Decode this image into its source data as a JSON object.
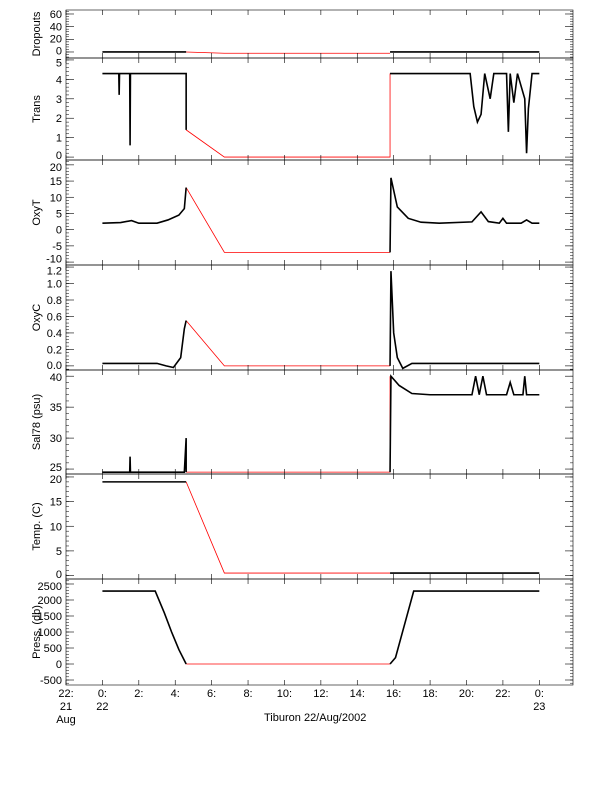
{
  "chart_data": {
    "type": "line",
    "title": "",
    "xlabel": "Tiburon 22/Aug/2002",
    "x_units": "hours since 00:00 22 Aug 2002",
    "xlim": [
      -2,
      25.85
    ],
    "x_ticks": [
      {
        "value": -2,
        "label": [
          "22:",
          "21",
          "Aug"
        ]
      },
      {
        "value": 0,
        "label": [
          "0:",
          "22"
        ]
      },
      {
        "value": 2,
        "label": [
          "2:"
        ]
      },
      {
        "value": 4,
        "label": [
          "4:"
        ]
      },
      {
        "value": 6,
        "label": [
          "6:"
        ]
      },
      {
        "value": 8,
        "label": [
          "8:"
        ]
      },
      {
        "value": 10,
        "label": [
          "10:"
        ]
      },
      {
        "value": 12,
        "label": [
          "12:"
        ]
      },
      {
        "value": 14,
        "label": [
          "14:"
        ]
      },
      {
        "value": 16,
        "label": [
          "16:"
        ]
      },
      {
        "value": 18,
        "label": [
          "18:"
        ]
      },
      {
        "value": 20,
        "label": [
          "20:"
        ]
      },
      {
        "value": 22,
        "label": [
          "22:"
        ]
      },
      {
        "value": 24,
        "label": [
          "0:",
          "23"
        ]
      }
    ],
    "colors": {
      "measured": "#000000",
      "interpolated": "#ff0000"
    },
    "panels": [
      {
        "ylabel": "Dropouts",
        "ylim": [
          -9.5,
          66.3
        ],
        "ticks": [
          0,
          20,
          40,
          60
        ],
        "tick_labels": [
          "0",
          "20",
          "40",
          "60"
        ],
        "black": [
          [
            [
              0,
              0
            ],
            [
              4.6,
              0
            ]
          ],
          [
            [
              15.8,
              0
            ],
            [
              24,
              0
            ]
          ]
        ],
        "red": [
          [
            [
              4.6,
              0
            ],
            [
              6.7,
              -2
            ],
            [
              15.8,
              -2
            ]
          ]
        ]
      },
      {
        "ylabel": "Trans",
        "ylim": [
          -0.15,
          5.1
        ],
        "ticks": [
          0,
          1,
          2,
          3,
          4,
          5
        ],
        "tick_labels": [
          "0",
          "1",
          "2",
          "3",
          "4",
          "5"
        ],
        "black": [
          [
            [
              0,
              4.3
            ],
            [
              0.9,
              4.3
            ],
            [
              0.92,
              3.2
            ],
            [
              0.94,
              4.3
            ],
            [
              1.5,
              4.3
            ],
            [
              1.52,
              0.6
            ],
            [
              1.54,
              4.3
            ],
            [
              4.6,
              4.3
            ],
            [
              4.6,
              1.4
            ]
          ],
          [
            [
              15.8,
              4.3
            ],
            [
              20.2,
              4.3
            ],
            [
              20.4,
              2.6
            ],
            [
              20.6,
              1.8
            ],
            [
              20.8,
              2.2
            ],
            [
              21.0,
              4.3
            ],
            [
              21.3,
              3.0
            ],
            [
              21.5,
              4.3
            ],
            [
              22.2,
              4.3
            ],
            [
              22.3,
              1.3
            ],
            [
              22.4,
              4.3
            ],
            [
              22.6,
              2.8
            ],
            [
              22.8,
              4.3
            ],
            [
              23.2,
              3.0
            ],
            [
              23.3,
              0.2
            ],
            [
              23.4,
              2.5
            ],
            [
              23.6,
              4.3
            ],
            [
              24,
              4.3
            ]
          ]
        ],
        "red": [
          [
            [
              4.6,
              1.4
            ],
            [
              6.7,
              0
            ],
            [
              15.8,
              0
            ],
            [
              15.8,
              4.3
            ]
          ]
        ]
      },
      {
        "ylabel": "OxyT",
        "ylim": [
          -10.9,
          21.5
        ],
        "ticks": [
          -10,
          -5,
          0,
          5,
          10,
          15,
          20
        ],
        "tick_labels": [
          "-10",
          "-5",
          "0",
          "5",
          "10",
          "15",
          "20"
        ],
        "black": [
          [
            [
              0,
              2
            ],
            [
              1,
              2.2
            ],
            [
              1.6,
              2.8
            ],
            [
              2,
              2
            ],
            [
              3,
              2
            ],
            [
              3.6,
              3
            ],
            [
              4.2,
              4.5
            ],
            [
              4.5,
              6.5
            ],
            [
              4.6,
              13
            ]
          ],
          [
            [
              15.8,
              -7
            ],
            [
              15.85,
              16
            ],
            [
              16.2,
              7
            ],
            [
              16.8,
              3.5
            ],
            [
              17.5,
              2.3
            ],
            [
              18.5,
              2
            ],
            [
              20.3,
              2.4
            ],
            [
              20.8,
              5.5
            ],
            [
              21.2,
              2.5
            ],
            [
              21.8,
              2
            ],
            [
              22,
              3.5
            ],
            [
              22.2,
              2
            ],
            [
              23,
              2
            ],
            [
              23.3,
              3
            ],
            [
              23.6,
              2
            ],
            [
              24,
              2
            ]
          ]
        ],
        "red": [
          [
            [
              4.6,
              13
            ],
            [
              6.7,
              -7
            ],
            [
              15.8,
              -7
            ]
          ]
        ]
      },
      {
        "ylabel": "OxyC",
        "ylim": [
          -0.05,
          1.225
        ],
        "ticks": [
          0,
          0.2,
          0.4,
          0.6,
          0.8,
          1.0,
          1.2
        ],
        "tick_labels": [
          "0.0",
          "0.2",
          "0.4",
          "0.6",
          "0.8",
          "1.0",
          "1.2"
        ],
        "black": [
          [
            [
              0,
              0.03
            ],
            [
              3,
              0.03
            ],
            [
              3.5,
              0
            ],
            [
              3.9,
              -0.02
            ],
            [
              4.3,
              0.1
            ],
            [
              4.5,
              0.45
            ],
            [
              4.6,
              0.55
            ]
          ],
          [
            [
              15.8,
              0
            ],
            [
              15.85,
              1.15
            ],
            [
              16.0,
              0.4
            ],
            [
              16.2,
              0.1
            ],
            [
              16.5,
              -0.03
            ],
            [
              17,
              0.03
            ],
            [
              24,
              0.03
            ]
          ]
        ],
        "red": [
          [
            [
              4.6,
              0.55
            ],
            [
              6.7,
              0
            ],
            [
              15.8,
              0
            ]
          ]
        ]
      },
      {
        "ylabel": "Sal78 (psu)",
        "ylim": [
          24.2,
          41
        ],
        "ticks": [
          25,
          30,
          35,
          40
        ],
        "tick_labels": [
          "25",
          "30",
          "35",
          "40"
        ],
        "black": [
          [
            [
              0,
              24.5
            ],
            [
              1.5,
              24.5
            ],
            [
              1.52,
              27
            ],
            [
              1.54,
              24.5
            ],
            [
              4.5,
              24.5
            ],
            [
              4.6,
              30
            ],
            [
              4.6,
              24.5
            ]
          ],
          [
            [
              15.8,
              24.5
            ],
            [
              15.85,
              40
            ],
            [
              16.3,
              38.5
            ],
            [
              17,
              37.2
            ],
            [
              18,
              37
            ],
            [
              20.3,
              37
            ],
            [
              20.5,
              40
            ],
            [
              20.7,
              37
            ],
            [
              20.9,
              40
            ],
            [
              21.1,
              37
            ],
            [
              22.2,
              37
            ],
            [
              22.4,
              39
            ],
            [
              22.6,
              37
            ],
            [
              23.1,
              37
            ],
            [
              23.2,
              40
            ],
            [
              23.3,
              37
            ],
            [
              24,
              37
            ]
          ]
        ],
        "red": [
          [
            [
              4.6,
              24.5
            ],
            [
              15.8,
              24.5
            ],
            [
              15.8,
              40
            ]
          ]
        ]
      },
      {
        "ylabel": "Temp. (C)",
        "ylim": [
          -0.7,
          20.6
        ],
        "ticks": [
          0,
          5,
          10,
          15,
          20
        ],
        "tick_labels": [
          "0",
          "5",
          "10",
          "15",
          "20"
        ],
        "black": [
          [
            [
              0,
              19
            ],
            [
              4.6,
              19
            ]
          ],
          [
            [
              15.8,
              0.5
            ],
            [
              24,
              0.5
            ]
          ]
        ],
        "red": [
          [
            [
              4.6,
              19
            ],
            [
              6.7,
              0.5
            ],
            [
              15.8,
              0.5
            ]
          ]
        ]
      },
      {
        "ylabel": "Press. (db)",
        "ylim": [
          -656,
          2656
        ],
        "ticks": [
          -500,
          0,
          500,
          1000,
          1500,
          2000,
          2500
        ],
        "tick_labels": [
          "-500",
          "0",
          "500",
          "1000",
          "1500",
          "2000",
          "2500"
        ],
        "black": [
          [
            [
              0,
              2280
            ],
            [
              2.9,
              2280
            ],
            [
              3.4,
              1600
            ],
            [
              3.8,
              1000
            ],
            [
              4.2,
              450
            ],
            [
              4.6,
              0
            ]
          ],
          [
            [
              15.8,
              0
            ],
            [
              16.1,
              200
            ],
            [
              17.1,
              2280
            ],
            [
              24,
              2280
            ]
          ]
        ],
        "red": [
          [
            [
              4.6,
              0
            ],
            [
              15.8,
              0
            ]
          ]
        ]
      }
    ]
  }
}
